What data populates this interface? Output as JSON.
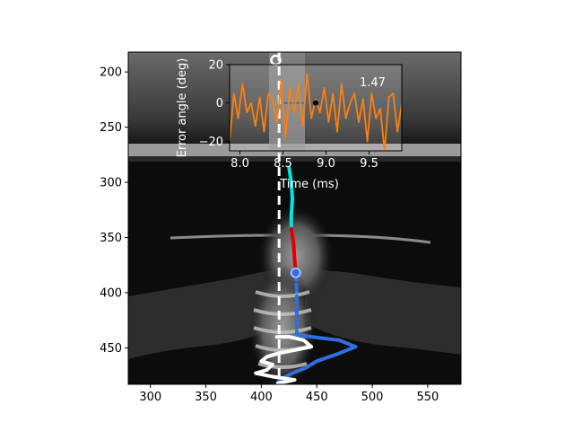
{
  "chart_data": [
    {
      "type": "image-overlay",
      "xlim": [
        280,
        580
      ],
      "ylim": [
        483,
        182
      ],
      "x_ticks": [
        300,
        350,
        400,
        450,
        500,
        550
      ],
      "y_ticks": [
        200,
        250,
        300,
        350,
        400,
        450
      ],
      "dashed_reference_x": 416,
      "tracks": [
        {
          "color": "#00e5e5",
          "points": [
            [
              425,
              287
            ],
            [
              427,
              300
            ],
            [
              428,
              315
            ],
            [
              427,
              330
            ],
            [
              427,
              342
            ]
          ]
        },
        {
          "color": "#e00000",
          "points": [
            [
              427,
              342
            ],
            [
              429,
              355
            ],
            [
              430,
              370
            ],
            [
              431,
              382
            ]
          ]
        },
        {
          "color": "#2f6fe0",
          "style": "dashed",
          "points": [
            [
              431,
              382
            ],
            [
              432,
              400
            ],
            [
              432,
              420
            ],
            [
              432,
              438
            ]
          ]
        },
        {
          "color": "#2f6fe0",
          "points": [
            [
              432,
              438
            ],
            [
              445,
              440
            ],
            [
              470,
              443
            ],
            [
              485,
              449
            ],
            [
              470,
              455
            ],
            [
              450,
              462
            ],
            [
              440,
              468
            ],
            [
              430,
              472
            ],
            [
              422,
              476
            ],
            [
              416,
              480
            ],
            [
              414,
              483
            ]
          ]
        },
        {
          "color": "#ffffff",
          "points": [
            [
              414,
              440
            ],
            [
              425,
              440
            ],
            [
              438,
              443
            ],
            [
              445,
              449
            ],
            [
              430,
              452
            ],
            [
              415,
              455
            ],
            [
              405,
              458
            ],
            [
              400,
              462
            ],
            [
              410,
              465
            ],
            [
              405,
              470
            ],
            [
              395,
              473
            ],
            [
              410,
              476
            ],
            [
              430,
              479
            ],
            [
              415,
              482
            ]
          ]
        }
      ],
      "marker": {
        "x": 431,
        "y": 382,
        "color": "#2f6fe0"
      }
    },
    {
      "type": "line",
      "xlabel": "Time (ms)",
      "ylabel": "Error angle (deg)",
      "xlim": [
        7.88,
        9.88
      ],
      "ylim": [
        -25,
        20
      ],
      "x_ticks": [
        8.0,
        8.5,
        9.0,
        9.5
      ],
      "y_ticks": [
        20,
        0,
        -20
      ],
      "annotation": "1.47",
      "series": [
        {
          "color": "#1f77b4",
          "x": [
            8.5,
            9.88
          ],
          "y": [
            0,
            0
          ]
        },
        {
          "color": "#ff7f0e",
          "x": [
            7.88,
            7.93,
            7.98,
            8.03,
            8.08,
            8.13,
            8.18,
            8.23,
            8.28,
            8.33,
            8.38,
            8.43,
            8.48,
            8.53,
            8.58,
            8.63,
            8.68,
            8.73,
            8.78,
            8.83,
            8.88,
            8.93,
            8.98,
            9.03,
            9.08,
            9.13,
            9.18,
            9.23,
            9.28,
            9.33,
            9.38,
            9.43,
            9.48,
            9.53,
            9.58,
            9.63,
            9.68,
            9.73,
            9.78,
            9.83,
            9.88
          ],
          "y": [
            -20,
            5,
            -8,
            10,
            -5,
            0,
            -12,
            3,
            -15,
            5,
            2,
            -10,
            12,
            -18,
            8,
            -5,
            10,
            -12,
            15,
            -8,
            2,
            -5,
            8,
            -10,
            5,
            -15,
            10,
            -8,
            0,
            5,
            -10,
            2,
            -20,
            5,
            -8,
            -3,
            -25,
            3,
            5,
            -15,
            0
          ]
        }
      ]
    }
  ]
}
